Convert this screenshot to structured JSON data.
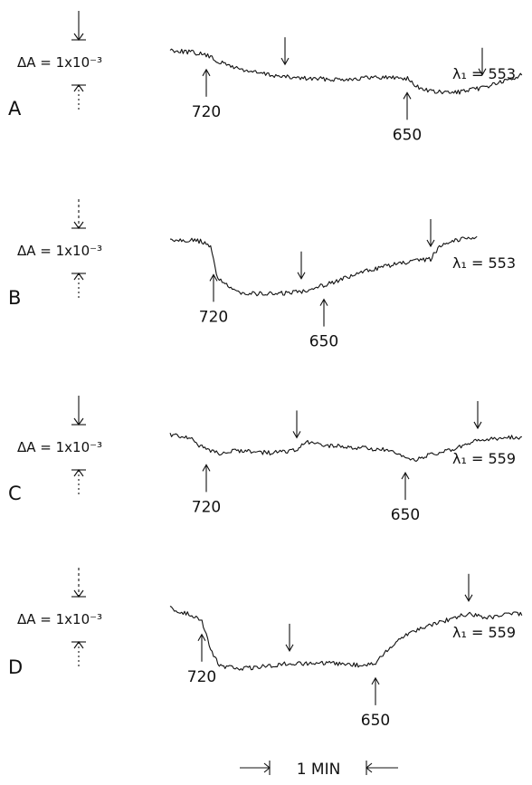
{
  "figure": {
    "time_scale_label": "1 MIN",
    "trace_color": "#111111"
  },
  "chart_data": [
    {
      "type": "line",
      "panel": "A",
      "scale_bar": "ΔA = 1x10⁻³",
      "lambda_label": "λ₁ = 553",
      "markers": [
        {
          "label": "720",
          "t": 0.4,
          "dir": "up"
        },
        {
          "label": "650",
          "t": 2.62,
          "dir": "up"
        }
      ],
      "down_markers": [
        1.27,
        3.45
      ],
      "x": [
        0.0,
        0.25,
        0.4,
        0.55,
        0.8,
        1.0,
        1.27,
        1.55,
        1.8,
        2.05,
        2.3,
        2.62,
        2.72,
        2.9,
        3.1,
        3.3,
        3.45,
        3.6,
        3.75,
        3.9
      ],
      "y": [
        0.0,
        -0.05,
        -0.1,
        -0.24,
        -0.38,
        -0.45,
        -0.52,
        -0.55,
        -0.56,
        -0.55,
        -0.52,
        -0.54,
        -0.7,
        -0.8,
        -0.82,
        -0.78,
        -0.72,
        -0.64,
        -0.58,
        -0.46
      ]
    },
    {
      "type": "line",
      "panel": "B",
      "scale_bar": "ΔA = 1x10⁻³",
      "lambda_label": "λ₁ = 553",
      "markers": [
        {
          "label": "720",
          "t": 0.48,
          "dir": "up"
        },
        {
          "label": "650",
          "t": 1.7,
          "dir": "up"
        }
      ],
      "down_markers": [
        1.45,
        2.88
      ],
      "x": [
        0.0,
        0.2,
        0.35,
        0.45,
        0.52,
        0.7,
        0.95,
        1.2,
        1.45,
        1.7,
        1.95,
        2.2,
        2.45,
        2.7,
        2.88,
        3.0,
        3.2,
        3.4
      ],
      "y": [
        0.0,
        -0.02,
        -0.05,
        -0.18,
        -0.75,
        -1.05,
        -1.1,
        -1.1,
        -1.05,
        -0.92,
        -0.78,
        -0.62,
        -0.52,
        -0.45,
        -0.4,
        -0.1,
        0.0,
        0.05
      ]
    },
    {
      "type": "line",
      "panel": "C",
      "scale_bar": "ΔA = 1x10⁻³",
      "lambda_label": "λ₁ = 559",
      "markers": [
        {
          "label": "720",
          "t": 0.4,
          "dir": "up"
        },
        {
          "label": "650",
          "t": 2.6,
          "dir": "up"
        }
      ],
      "down_markers": [
        1.4,
        3.4
      ],
      "x": [
        0.0,
        0.2,
        0.4,
        0.55,
        0.8,
        1.1,
        1.4,
        1.5,
        1.8,
        2.1,
        2.4,
        2.6,
        2.7,
        2.85,
        3.1,
        3.4,
        3.55,
        3.8,
        3.9
      ],
      "y": [
        0.0,
        -0.05,
        -0.3,
        -0.35,
        -0.3,
        -0.35,
        -0.3,
        -0.15,
        -0.22,
        -0.25,
        -0.3,
        -0.45,
        -0.48,
        -0.4,
        -0.3,
        -0.12,
        -0.08,
        -0.05,
        -0.05
      ]
    },
    {
      "type": "line",
      "panel": "D",
      "scale_bar": "ΔA = 1x10⁻³",
      "lambda_label": "λ₁ = 559",
      "markers": [
        {
          "label": "720",
          "t": 0.35,
          "dir": "up"
        },
        {
          "label": "650",
          "t": 2.27,
          "dir": "up"
        }
      ],
      "down_markers": [
        1.32,
        3.3
      ],
      "x": [
        0.0,
        0.2,
        0.35,
        0.45,
        0.55,
        0.8,
        1.05,
        1.32,
        1.6,
        1.9,
        2.1,
        2.27,
        2.45,
        2.65,
        2.9,
        3.1,
        3.3,
        3.5,
        3.7,
        3.9
      ],
      "y": [
        0.0,
        -0.1,
        -0.22,
        -0.8,
        -1.1,
        -1.15,
        -1.1,
        -1.05,
        -1.05,
        -1.05,
        -1.08,
        -1.05,
        -0.7,
        -0.45,
        -0.3,
        -0.2,
        -0.1,
        -0.18,
        -0.12,
        -0.1
      ]
    }
  ]
}
